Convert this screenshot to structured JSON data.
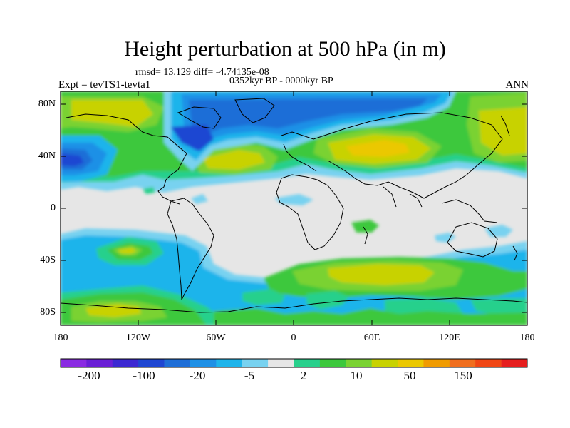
{
  "title": "Height perturbation at 500 hPa (in m)",
  "stats_line": "rmsd= 13.129 diff= -4.74135e-08",
  "period_line": "0352kyr BP - 0000kyr BP",
  "experiment": "Expt = tevTS1-tevta1",
  "season": "ANN",
  "lat_ticks": [
    "80N",
    "40N",
    "0",
    "40S",
    "80S"
  ],
  "lon_ticks": [
    "180",
    "120W",
    "60W",
    "0",
    "60E",
    "120E",
    "180"
  ],
  "colorbar": {
    "colors": [
      "#8a2be2",
      "#6a1fd6",
      "#3c28d2",
      "#1e46d2",
      "#1e6ed7",
      "#1e90e6",
      "#1eb4eb",
      "#78d2f0",
      "#e6e6e6",
      "#28d08c",
      "#3cc83c",
      "#7ad232",
      "#c8d200",
      "#ebc800",
      "#f09b00",
      "#f06e1e",
      "#f04614",
      "#e61e1e"
    ],
    "labels": [
      "-200",
      "-100",
      "-20",
      "-5",
      "2",
      "10",
      "50",
      "150"
    ]
  }
}
